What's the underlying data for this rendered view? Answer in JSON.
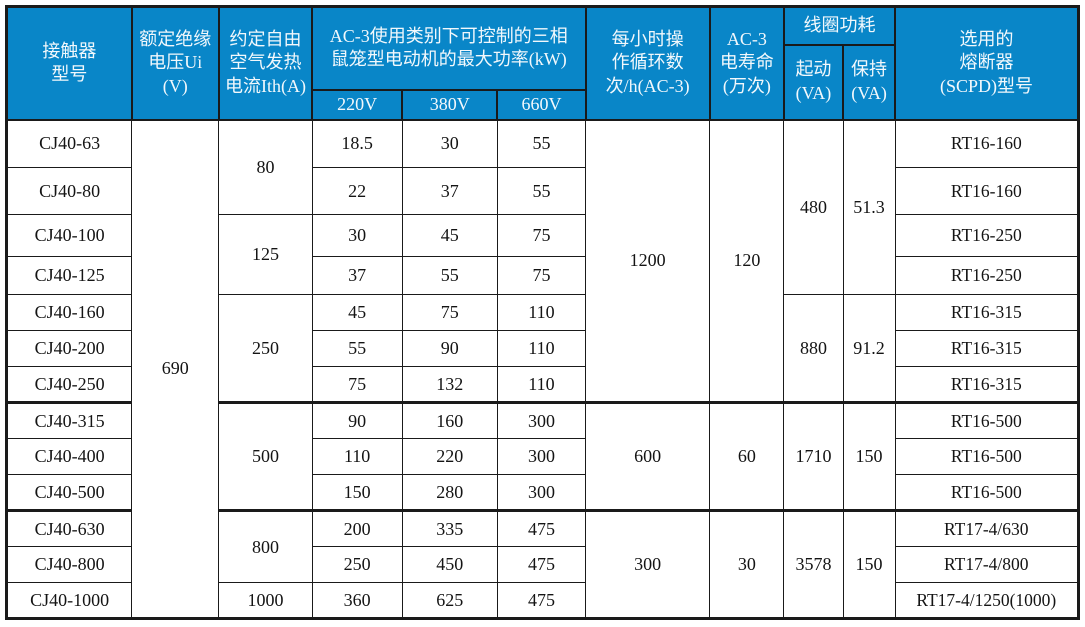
{
  "theme": {
    "header_bg": "#0986c8",
    "header_text": "#f2f8fc",
    "border_dark": "#1a1a1a",
    "body_bg": "#ffffff",
    "body_text": "#141414"
  },
  "table": {
    "headers": {
      "model": "接触器\n型号",
      "ui": "额定绝缘\n电压Ui (V)",
      "ith": "约定自由\n空气发热\n电流Ith(A)",
      "power_group": "AC-3使用类别下可控制的三相\n鼠笼型电动机的最大功率(kW)",
      "v220": "220V",
      "v380": "380V",
      "v660": "660V",
      "cycles": "每小时操\n作循环数\n次/h(AC-3)",
      "life": "AC-3\n电寿命\n(万次)",
      "coil": "线圈功耗",
      "start": "起动\n(VA)",
      "hold": "保持\n(VA)",
      "fuse": "选用的\n熔断器\n(SCPD)型号"
    },
    "ui_value": "690",
    "merged": {
      "ith": [
        "80",
        "125",
        "250",
        "500",
        "800",
        "1000"
      ],
      "cycles": [
        "1200",
        "600",
        "300"
      ],
      "life": [
        "120",
        "60",
        "30"
      ],
      "start": [
        "480",
        "880",
        "1710",
        "3578"
      ],
      "hold": [
        "51.3",
        "91.2",
        "150",
        "150"
      ]
    },
    "rows": [
      {
        "model": "CJ40-63",
        "p220": "18.5",
        "p380": "30",
        "p660": "55",
        "fuse": "RT16-160"
      },
      {
        "model": "CJ40-80",
        "p220": "22",
        "p380": "37",
        "p660": "55",
        "fuse": "RT16-160"
      },
      {
        "model": "CJ40-100",
        "p220": "30",
        "p380": "45",
        "p660": "75",
        "fuse": "RT16-250"
      },
      {
        "model": "CJ40-125",
        "p220": "37",
        "p380": "55",
        "p660": "75",
        "fuse": "RT16-250"
      },
      {
        "model": "CJ40-160",
        "p220": "45",
        "p380": "75",
        "p660": "110",
        "fuse": "RT16-315"
      },
      {
        "model": "CJ40-200",
        "p220": "55",
        "p380": "90",
        "p660": "110",
        "fuse": "RT16-315"
      },
      {
        "model": "CJ40-250",
        "p220": "75",
        "p380": "132",
        "p660": "110",
        "fuse": "RT16-315"
      },
      {
        "model": "CJ40-315",
        "p220": "90",
        "p380": "160",
        "p660": "300",
        "fuse": "RT16-500"
      },
      {
        "model": "CJ40-400",
        "p220": "110",
        "p380": "220",
        "p660": "300",
        "fuse": "RT16-500"
      },
      {
        "model": "CJ40-500",
        "p220": "150",
        "p380": "280",
        "p660": "300",
        "fuse": "RT16-500"
      },
      {
        "model": "CJ40-630",
        "p220": "200",
        "p380": "335",
        "p660": "475",
        "fuse": "RT17-4/630"
      },
      {
        "model": "CJ40-800",
        "p220": "250",
        "p380": "450",
        "p660": "475",
        "fuse": "RT17-4/800"
      },
      {
        "model": "CJ40-1000",
        "p220": "360",
        "p380": "625",
        "p660": "475",
        "fuse": "RT17-4/1250(1000)"
      }
    ]
  }
}
